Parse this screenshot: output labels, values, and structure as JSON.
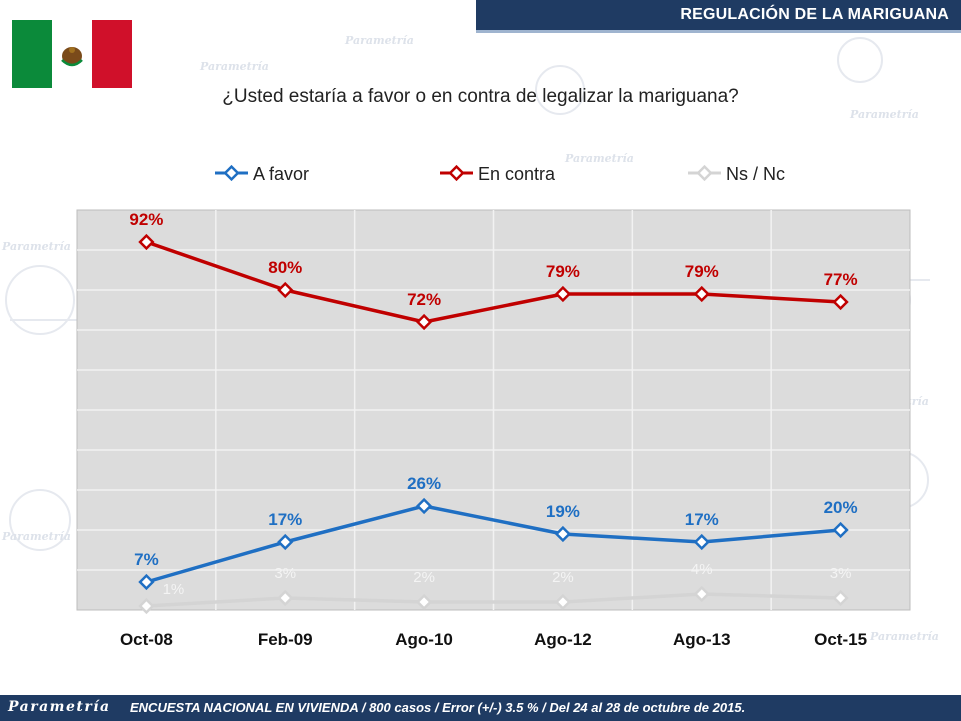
{
  "header": {
    "title": "REGULACIÓN DE LA MARIGUANA"
  },
  "question": "¿Usted estaría a favor o en contra de legalizar la mariguana?",
  "watermark": {
    "brand": "Parametría"
  },
  "footer": {
    "logo": "Parametría",
    "note": "ENCUESTA NACIONAL EN VIVIENDA / 800 casos / Error (+/-) 3.5 % / Del 24 al 28 de octubre de 2015."
  },
  "chart_data": {
    "type": "line",
    "categories": [
      "Oct-08",
      "Feb-09",
      "Ago-10",
      "Ago-12",
      "Ago-13",
      "Oct-15"
    ],
    "series": [
      {
        "name": "A favor",
        "color": "#1f6fc3",
        "values": [
          7,
          17,
          26,
          19,
          17,
          20
        ]
      },
      {
        "name": "En contra",
        "color": "#c00000",
        "values": [
          92,
          80,
          72,
          79,
          79,
          77
        ]
      },
      {
        "name": "Ns / Nc",
        "color": "#d4d4d4",
        "values": [
          1,
          3,
          2,
          2,
          4,
          3
        ]
      }
    ],
    "ylim": [
      0,
      100
    ],
    "yticks": [
      0,
      10,
      20,
      30,
      40,
      50,
      60,
      70,
      80,
      90,
      100
    ],
    "value_suffix": "%",
    "legend_position": "top",
    "grid": true
  }
}
